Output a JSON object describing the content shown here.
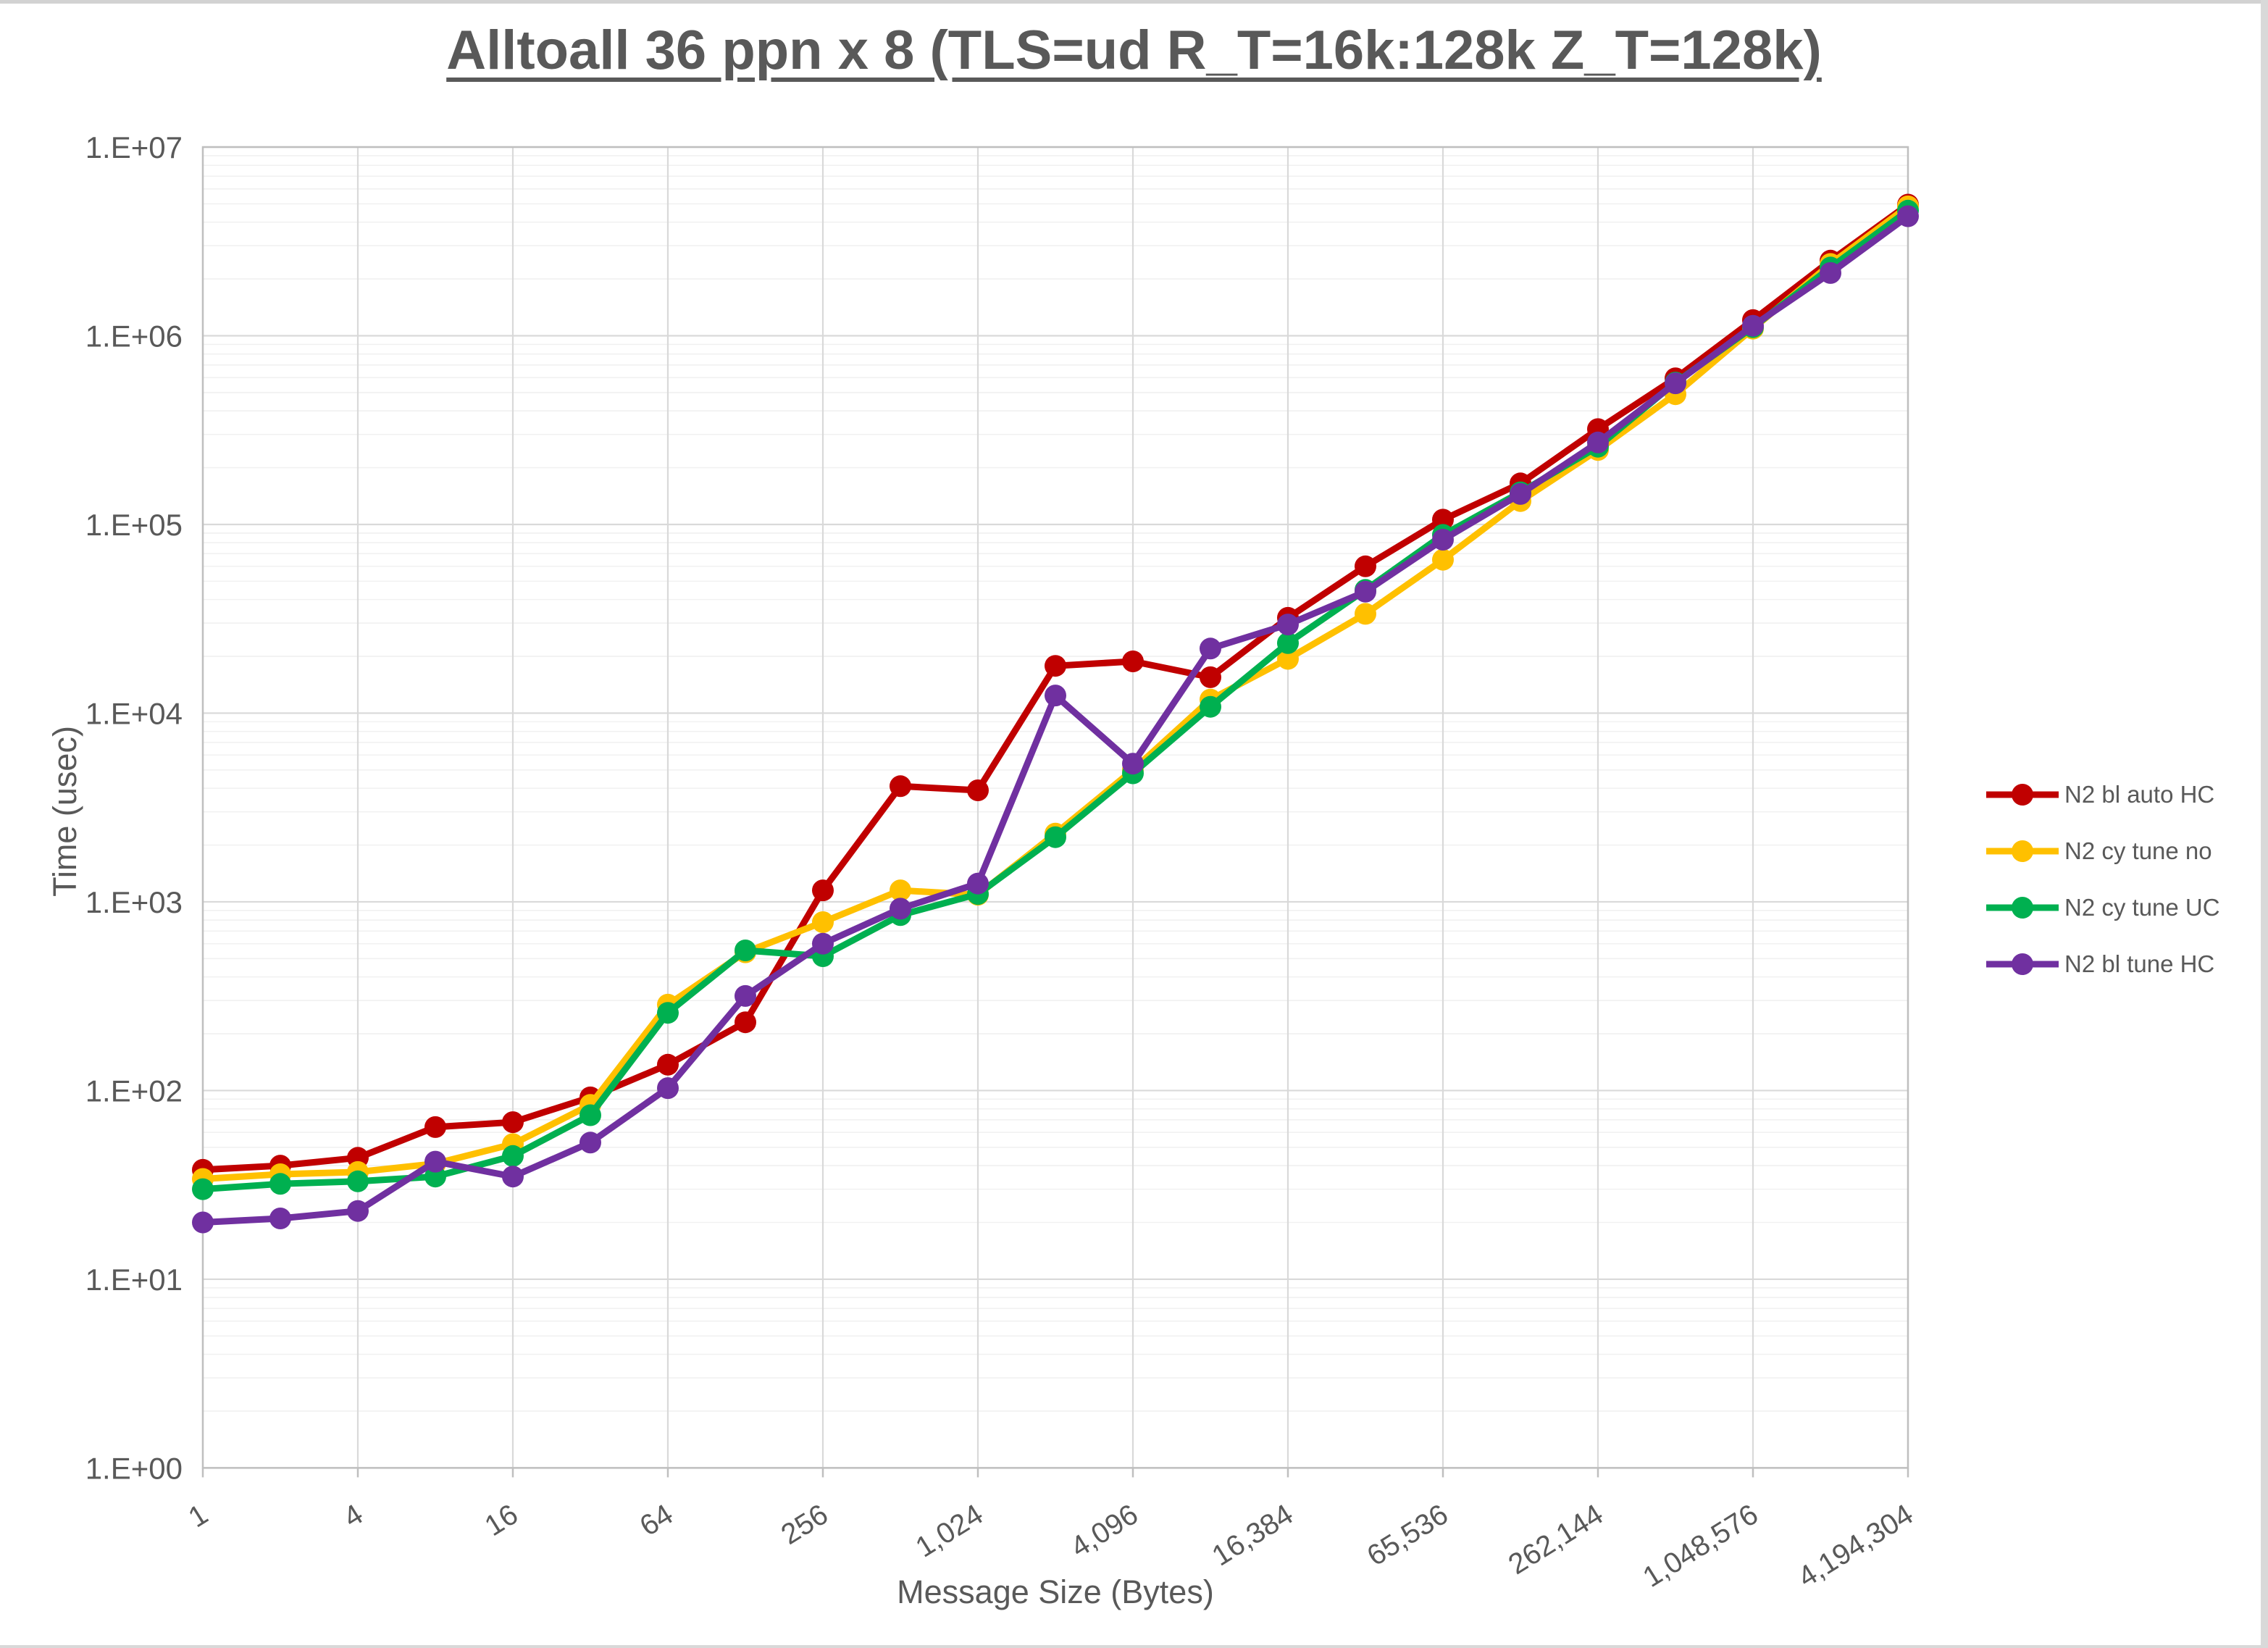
{
  "title": "Alltoall 36 ppn x 8 (TLS=ud R_T=16k:128k Z_T=128k)",
  "axes": {
    "x_label": "Message Size (Bytes)",
    "y_label": "Time (usec)"
  },
  "chart_data": {
    "type": "line",
    "title": "Alltoall 36 ppn x 8 (TLS=ud R_T=16k:128k Z_T=128k)",
    "xlabel": "Message Size (Bytes)",
    "ylabel": "Time (usec)",
    "x_scale": "log2",
    "y_scale": "log10",
    "xlim": [
      1,
      4194304
    ],
    "ylim": [
      1,
      10000000
    ],
    "grid": "horizontal major+minor (log decades), vertical major every 4x",
    "legend_position": "right",
    "x": [
      1,
      2,
      4,
      8,
      16,
      32,
      64,
      128,
      256,
      512,
      1024,
      2048,
      4096,
      8192,
      16384,
      32768,
      65536,
      131072,
      262144,
      524288,
      1048576,
      2097152,
      4194304
    ],
    "x_tick_values": [
      1,
      4,
      16,
      64,
      256,
      1024,
      4096,
      16384,
      65536,
      262144,
      1048576,
      4194304
    ],
    "x_tick_labels": [
      "1",
      "4",
      "16",
      "64",
      "256",
      "1,024",
      "4,096",
      "16,384",
      "65,536",
      "262,144",
      "1,048,576",
      "4,194,304"
    ],
    "y_tick_labels": [
      "1.E+00",
      "1.E+01",
      "1.E+02",
      "1.E+03",
      "1.E+04",
      "1.E+05",
      "1.E+06",
      "1.E+07"
    ],
    "series": [
      {
        "name": "N2 bl auto HC",
        "color": "#C00000",
        "values": [
          38,
          40,
          44,
          64,
          68,
          92,
          137,
          230,
          1150,
          4100,
          3900,
          17800,
          18800,
          15500,
          32000,
          60000,
          106000,
          165000,
          320000,
          595000,
          1210000,
          2500000,
          4950000
        ]
      },
      {
        "name": "N2 cy tune no",
        "color": "#FFC000",
        "values": [
          34,
          36,
          37,
          41,
          52,
          84,
          285,
          540,
          780,
          1150,
          1090,
          2300,
          5000,
          11800,
          19400,
          33600,
          65000,
          133000,
          248000,
          490000,
          1090000,
          2400000,
          4850000
        ]
      },
      {
        "name": "N2 cy tune UC",
        "color": "#00B050",
        "values": [
          30,
          32,
          33,
          35,
          45,
          74,
          258,
          553,
          515,
          850,
          1100,
          2200,
          4800,
          10800,
          23500,
          45000,
          88000,
          148000,
          258000,
          565000,
          1110000,
          2300000,
          4600000
        ]
      },
      {
        "name": "N2 bl tune HC",
        "color": "#7030A0",
        "values": [
          20,
          21,
          23,
          42,
          35,
          53,
          103,
          317,
          600,
          920,
          1250,
          12400,
          5400,
          22000,
          29500,
          44000,
          83000,
          145000,
          272000,
          560000,
          1130000,
          2150000,
          4300000
        ]
      }
    ]
  },
  "colors": {
    "text": "#595959",
    "grid_major": "#D9D9D9",
    "grid_minor": "#F1F1F1",
    "plot_border": "#BFBFBF",
    "background": "#FFFFFF"
  }
}
